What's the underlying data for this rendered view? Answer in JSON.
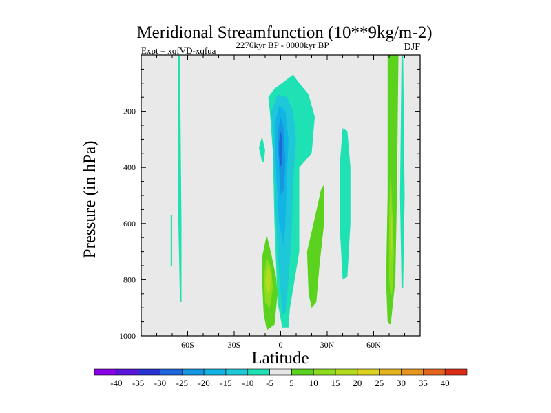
{
  "chart_data": {
    "type": "contour",
    "title": "Meridional Streamfunction (10**9kg/m-2)",
    "experiment": "Expt = xqfVD-xqfua",
    "period": "2276kyr BP - 0000kyr BP",
    "season": "DJF",
    "xlabel": "Latitude",
    "ylabel": "Pressure (in hPa)",
    "xlim": [
      -90,
      90
    ],
    "ylim": [
      1000,
      0
    ],
    "y_inverted": true,
    "x_ticks": [
      {
        "value": -60,
        "label": "60S"
      },
      {
        "value": -30,
        "label": "30S"
      },
      {
        "value": 0,
        "label": "0"
      },
      {
        "value": 30,
        "label": "30N"
      },
      {
        "value": 60,
        "label": "60N"
      }
    ],
    "y_ticks": [
      {
        "value": 200,
        "label": "200"
      },
      {
        "value": 400,
        "label": "400"
      },
      {
        "value": 600,
        "label": "600"
      },
      {
        "value": 800,
        "label": "800"
      },
      {
        "value": 1000,
        "label": "1000"
      }
    ],
    "colorbar": {
      "labels": [
        "-40",
        "-35",
        "-30",
        "-25",
        "-20",
        "-15",
        "-10",
        "-5",
        "5",
        "10",
        "15",
        "20",
        "25",
        "30",
        "35",
        "40"
      ],
      "colors": [
        "#8a00e6",
        "#5a14dc",
        "#2832d2",
        "#1e64dc",
        "#1496e1",
        "#12b4e6",
        "#1ec8d8",
        "#1ee1b4",
        "#e6e6e6",
        "#5ad21e",
        "#8cdc1e",
        "#b4dc1e",
        "#dcd21e",
        "#e6b41e",
        "#e6961e",
        "#e6641e",
        "#dc2d14"
      ]
    },
    "contours": [
      {
        "level": -5,
        "points": [
          [
            -65,
            880
          ],
          [
            -66,
            600
          ],
          [
            -66,
            0
          ],
          [
            -65,
            0
          ],
          [
            -64,
            600
          ],
          [
            -64,
            880
          ]
        ]
      },
      {
        "level": -5,
        "points": [
          [
            -71,
            750
          ],
          [
            -71,
            570
          ],
          [
            -70,
            570
          ],
          [
            -70,
            750
          ]
        ]
      },
      {
        "level": -5,
        "points": [
          [
            -8,
            150
          ],
          [
            -4,
            120
          ],
          [
            8,
            70
          ],
          [
            12,
            100
          ],
          [
            18,
            140
          ],
          [
            22,
            220
          ],
          [
            20,
            350
          ],
          [
            12,
            400
          ],
          [
            12,
            700
          ],
          [
            6,
            900
          ],
          [
            5,
            970
          ],
          [
            1,
            970
          ],
          [
            -2,
            880
          ],
          [
            -4,
            600
          ],
          [
            -5,
            350
          ],
          [
            -7,
            200
          ]
        ]
      },
      {
        "level": -5,
        "points": [
          [
            -12,
            380
          ],
          [
            -14,
            330
          ],
          [
            -12,
            290
          ],
          [
            -10,
            340
          ],
          [
            -11,
            380
          ]
        ]
      },
      {
        "level": -5,
        "points": [
          [
            40,
            800
          ],
          [
            38,
            600
          ],
          [
            38,
            400
          ],
          [
            40,
            260
          ],
          [
            43,
            270
          ],
          [
            45,
            400
          ],
          [
            45,
            600
          ],
          [
            43,
            790
          ]
        ]
      },
      {
        "level": -5,
        "points": [
          [
            78,
            830
          ],
          [
            77,
            500
          ],
          [
            78,
            0
          ],
          [
            79,
            0
          ],
          [
            80,
            500
          ],
          [
            79,
            830
          ]
        ]
      },
      {
        "level": -10,
        "points": [
          [
            -6,
            200
          ],
          [
            -2,
            140
          ],
          [
            4,
            150
          ],
          [
            8,
            200
          ],
          [
            10,
            300
          ],
          [
            8,
            450
          ],
          [
            7,
            650
          ],
          [
            5,
            800
          ],
          [
            3,
            920
          ],
          [
            1,
            920
          ],
          [
            -2,
            700
          ],
          [
            -4,
            450
          ],
          [
            -5,
            300
          ]
        ]
      },
      {
        "level": -15,
        "points": [
          [
            -4,
            250
          ],
          [
            -1,
            180
          ],
          [
            3,
            200
          ],
          [
            5,
            300
          ],
          [
            4,
            450
          ],
          [
            3,
            600
          ],
          [
            2,
            680
          ],
          [
            -1,
            600
          ],
          [
            -3,
            400
          ]
        ]
      },
      {
        "level": -20,
        "points": [
          [
            -2,
            280
          ],
          [
            0,
            220
          ],
          [
            2,
            260
          ],
          [
            3,
            380
          ],
          [
            2,
            480
          ],
          [
            0,
            500
          ],
          [
            -1,
            400
          ]
        ]
      },
      {
        "level": -25,
        "points": [
          [
            -1,
            310
          ],
          [
            0,
            270
          ],
          [
            1,
            300
          ],
          [
            1,
            380
          ],
          [
            0,
            400
          ],
          [
            -1,
            360
          ]
        ]
      },
      {
        "level": 5,
        "points": [
          [
            -11,
            920
          ],
          [
            -12,
            800
          ],
          [
            -12,
            720
          ],
          [
            -9,
            640
          ],
          [
            -6,
            710
          ],
          [
            -3,
            790
          ],
          [
            -2,
            850
          ],
          [
            -4,
            960
          ],
          [
            -9,
            980
          ]
        ]
      },
      {
        "level": 5,
        "points": [
          [
            18,
            850
          ],
          [
            17,
            700
          ],
          [
            22,
            580
          ],
          [
            26,
            480
          ],
          [
            28,
            460
          ],
          [
            28,
            600
          ],
          [
            25,
            750
          ],
          [
            23,
            880
          ],
          [
            20,
            900
          ]
        ]
      },
      {
        "level": 5,
        "points": [
          [
            69,
            950
          ],
          [
            68,
            800
          ],
          [
            69,
            500
          ],
          [
            69,
            0
          ],
          [
            76,
            0
          ],
          [
            75,
            500
          ],
          [
            74,
            800
          ],
          [
            71,
            960
          ]
        ]
      },
      {
        "level": 10,
        "points": [
          [
            -10,
            880
          ],
          [
            -11,
            790
          ],
          [
            -9,
            720
          ],
          [
            -6,
            760
          ],
          [
            -5,
            830
          ],
          [
            -7,
            900
          ]
        ]
      },
      {
        "level": 10,
        "points": [
          [
            70,
            800
          ],
          [
            70,
            550
          ],
          [
            71,
            400
          ],
          [
            72,
            550
          ],
          [
            73,
            700
          ],
          [
            72,
            850
          ],
          [
            71,
            860
          ]
        ]
      },
      {
        "level": 15,
        "points": [
          [
            -9,
            850
          ],
          [
            -10,
            800
          ],
          [
            -8,
            750
          ],
          [
            -6,
            790
          ],
          [
            -7,
            840
          ]
        ]
      },
      {
        "level": 15,
        "points": [
          [
            71,
            720
          ],
          [
            71,
            600
          ],
          [
            72,
            560
          ],
          [
            72,
            680
          ]
        ]
      }
    ]
  }
}
